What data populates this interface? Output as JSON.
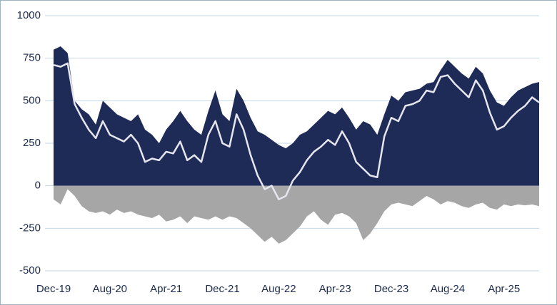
{
  "chart_data": {
    "type": "area",
    "categories": [
      "Dec-19",
      null,
      null,
      null,
      null,
      null,
      null,
      null,
      "Aug-20",
      null,
      null,
      null,
      null,
      null,
      null,
      null,
      "Apr-21",
      null,
      null,
      null,
      null,
      null,
      null,
      null,
      "Dec-21",
      null,
      null,
      null,
      null,
      null,
      null,
      null,
      "Aug-22",
      null,
      null,
      null,
      null,
      null,
      null,
      null,
      "Apr-23",
      null,
      null,
      null,
      null,
      null,
      null,
      null,
      "Dec-23",
      null,
      null,
      null,
      null,
      null,
      null,
      null,
      "Aug-24",
      null,
      null,
      null,
      null,
      null,
      null,
      null,
      "Apr-25",
      null,
      null,
      null,
      null,
      null
    ],
    "series": [
      {
        "color": "#1f2b57",
        "kind": "area",
        "values": [
          800,
          820,
          780,
          500,
          450,
          420,
          360,
          500,
          460,
          420,
          400,
          380,
          420,
          330,
          300,
          250,
          330,
          380,
          440,
          380,
          330,
          300,
          440,
          560,
          420,
          380,
          570,
          500,
          400,
          320,
          300,
          270,
          240,
          220,
          250,
          300,
          320,
          360,
          400,
          440,
          420,
          460,
          400,
          330,
          380,
          360,
          300,
          420,
          530,
          500,
          550,
          560,
          570,
          600,
          610,
          680,
          740,
          700,
          660,
          630,
          700,
          660,
          560,
          490,
          470,
          520,
          560,
          580,
          600,
          610
        ]
      },
      {
        "color": "#a6a6a6",
        "kind": "area",
        "values": [
          -80,
          -110,
          -20,
          -60,
          -120,
          -150,
          -160,
          -150,
          -170,
          -140,
          -160,
          -150,
          -170,
          -180,
          -190,
          -170,
          -210,
          -200,
          -180,
          -220,
          -180,
          -190,
          -200,
          -180,
          -200,
          -180,
          -190,
          -220,
          -250,
          -290,
          -330,
          -300,
          -340,
          -320,
          -280,
          -240,
          -180,
          -150,
          -200,
          -230,
          -170,
          -160,
          -180,
          -220,
          -320,
          -280,
          -220,
          -150,
          -110,
          -100,
          -110,
          -120,
          -90,
          -60,
          -80,
          -110,
          -90,
          -100,
          -120,
          -130,
          -110,
          -100,
          -130,
          -140,
          -110,
          -120,
          -110,
          -115,
          -110,
          -120
        ]
      },
      {
        "color": "#e6e6ee",
        "kind": "line",
        "values": [
          710,
          700,
          720,
          480,
          400,
          330,
          280,
          380,
          300,
          280,
          260,
          300,
          250,
          140,
          160,
          150,
          200,
          190,
          260,
          150,
          180,
          140,
          300,
          380,
          250,
          230,
          420,
          330,
          180,
          60,
          -20,
          0,
          -80,
          -60,
          30,
          80,
          150,
          200,
          230,
          270,
          240,
          320,
          250,
          140,
          100,
          60,
          50,
          290,
          400,
          380,
          470,
          480,
          500,
          560,
          550,
          640,
          650,
          600,
          560,
          520,
          620,
          560,
          430,
          330,
          350,
          400,
          440,
          470,
          520,
          490
        ]
      }
    ],
    "ylim": [
      -500,
      1000
    ],
    "yticks": [
      -500,
      -250,
      0,
      250,
      500,
      750,
      1000
    ],
    "grid": true
  }
}
